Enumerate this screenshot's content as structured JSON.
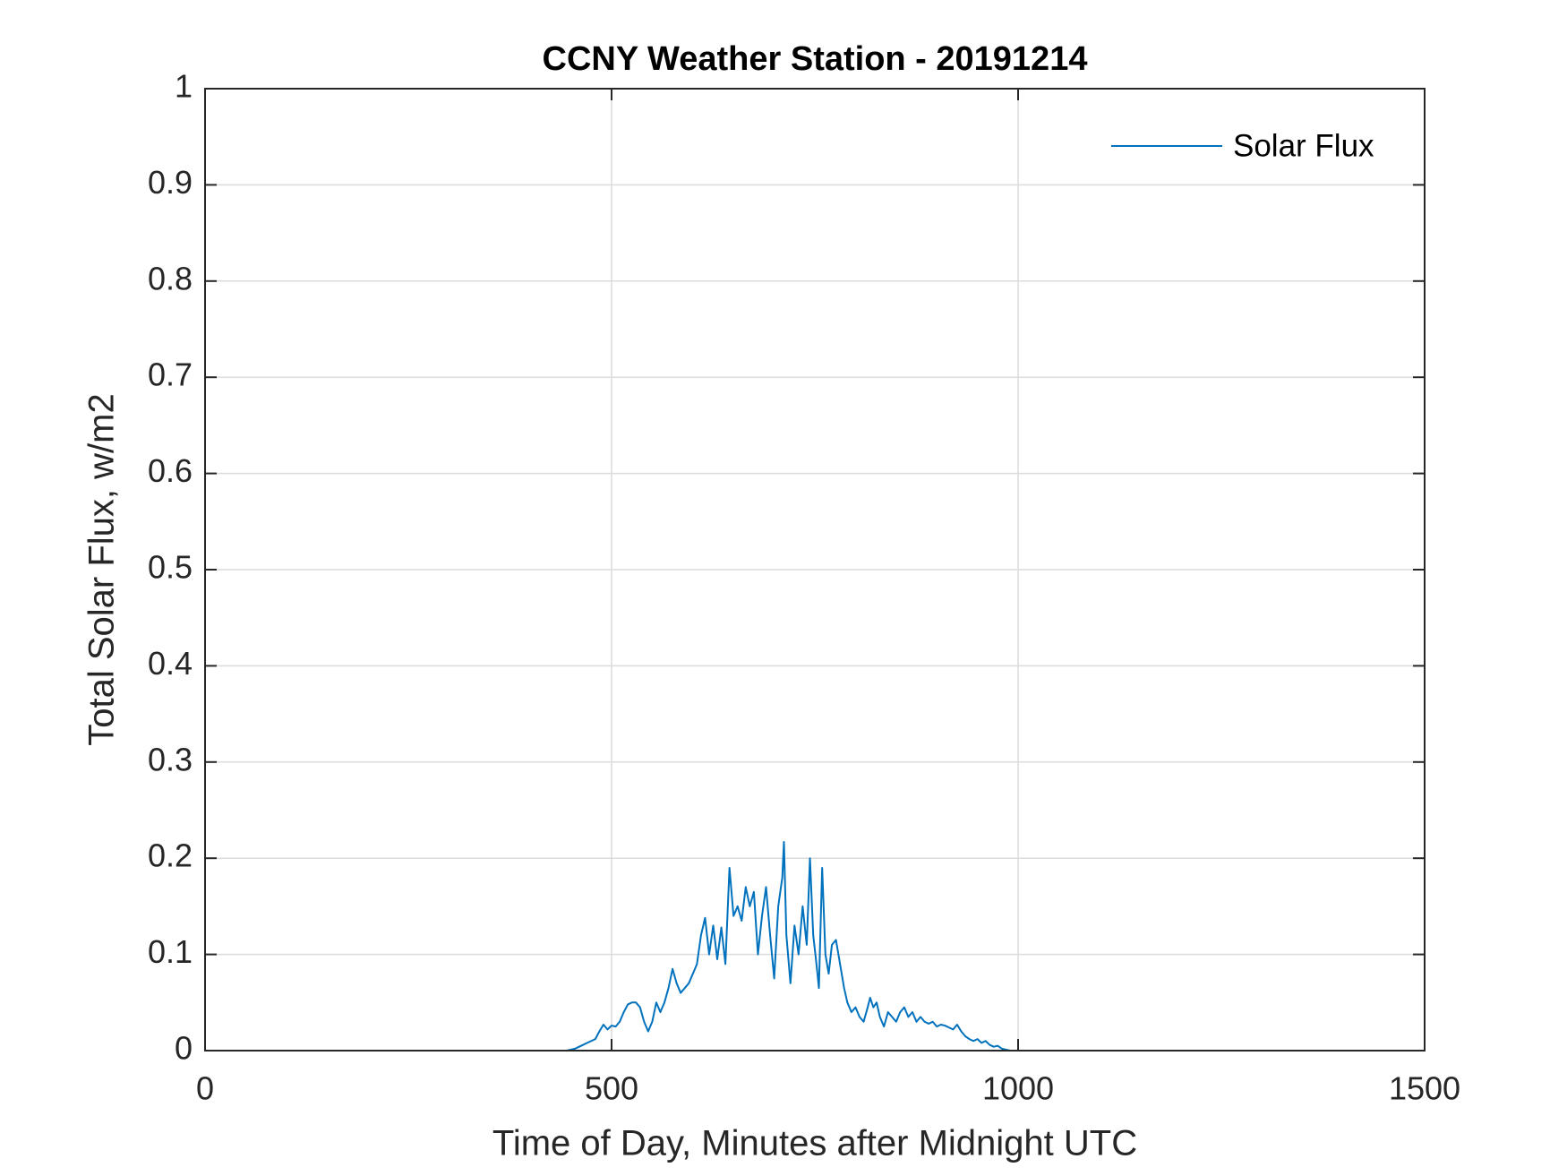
{
  "chart_data": {
    "type": "line",
    "title": "CCNY Weather Station - 20191214",
    "xlabel": "Time of Day, Minutes after Midnight UTC",
    "ylabel": "Total Solar Flux, w/m2",
    "x": [
      0,
      440,
      445,
      450,
      455,
      460,
      465,
      470,
      475,
      480,
      485,
      490,
      495,
      500,
      505,
      510,
      515,
      520,
      525,
      530,
      535,
      540,
      545,
      550,
      555,
      560,
      565,
      570,
      575,
      580,
      585,
      590,
      595,
      600,
      605,
      610,
      615,
      620,
      625,
      630,
      635,
      640,
      645,
      650,
      655,
      660,
      665,
      670,
      675,
      680,
      685,
      690,
      695,
      700,
      705,
      710,
      712,
      715,
      720,
      725,
      730,
      735,
      740,
      744,
      748,
      752,
      755,
      759,
      763,
      767,
      771,
      776,
      781,
      786,
      790,
      795,
      800,
      805,
      810,
      815,
      818,
      822,
      826,
      830,
      835,
      840,
      845,
      850,
      855,
      860,
      865,
      870,
      875,
      880,
      885,
      890,
      895,
      900,
      905,
      910,
      915,
      920,
      925,
      930,
      935,
      940,
      945,
      950,
      955,
      960,
      965,
      970,
      975,
      980,
      985,
      990,
      1440
    ],
    "series": [
      {
        "name": "Solar Flux",
        "color": "#0072bd",
        "values": [
          0,
          0,
          0,
          0.001,
          0.002,
          0.004,
          0.006,
          0.008,
          0.01,
          0.012,
          0.02,
          0.027,
          0.022,
          0.026,
          0.025,
          0.03,
          0.04,
          0.048,
          0.05,
          0.05,
          0.045,
          0.03,
          0.02,
          0.03,
          0.05,
          0.04,
          0.05,
          0.065,
          0.085,
          0.07,
          0.06,
          0.065,
          0.07,
          0.08,
          0.09,
          0.12,
          0.138,
          0.1,
          0.13,
          0.095,
          0.128,
          0.09,
          0.19,
          0.14,
          0.15,
          0.135,
          0.17,
          0.15,
          0.165,
          0.1,
          0.14,
          0.17,
          0.12,
          0.075,
          0.15,
          0.18,
          0.217,
          0.12,
          0.07,
          0.13,
          0.1,
          0.15,
          0.11,
          0.2,
          0.12,
          0.09,
          0.065,
          0.19,
          0.1,
          0.08,
          0.11,
          0.115,
          0.09,
          0.065,
          0.05,
          0.04,
          0.045,
          0.035,
          0.03,
          0.045,
          0.055,
          0.045,
          0.05,
          0.035,
          0.025,
          0.04,
          0.035,
          0.03,
          0.04,
          0.045,
          0.035,
          0.04,
          0.03,
          0.035,
          0.03,
          0.028,
          0.03,
          0.025,
          0.027,
          0.026,
          0.024,
          0.022,
          0.027,
          0.02,
          0.015,
          0.012,
          0.01,
          0.012,
          0.008,
          0.01,
          0.006,
          0.004,
          0.005,
          0.002,
          0.001,
          0,
          0
        ]
      }
    ],
    "xlim": [
      0,
      1500
    ],
    "xticks": [
      0,
      500,
      1000,
      1500
    ],
    "ylim": [
      0,
      1
    ],
    "yticks": [
      0,
      0.1,
      0.2,
      0.3,
      0.4,
      0.5,
      0.6,
      0.7,
      0.8,
      0.9,
      1
    ],
    "grid": true,
    "legend": "northeast"
  }
}
